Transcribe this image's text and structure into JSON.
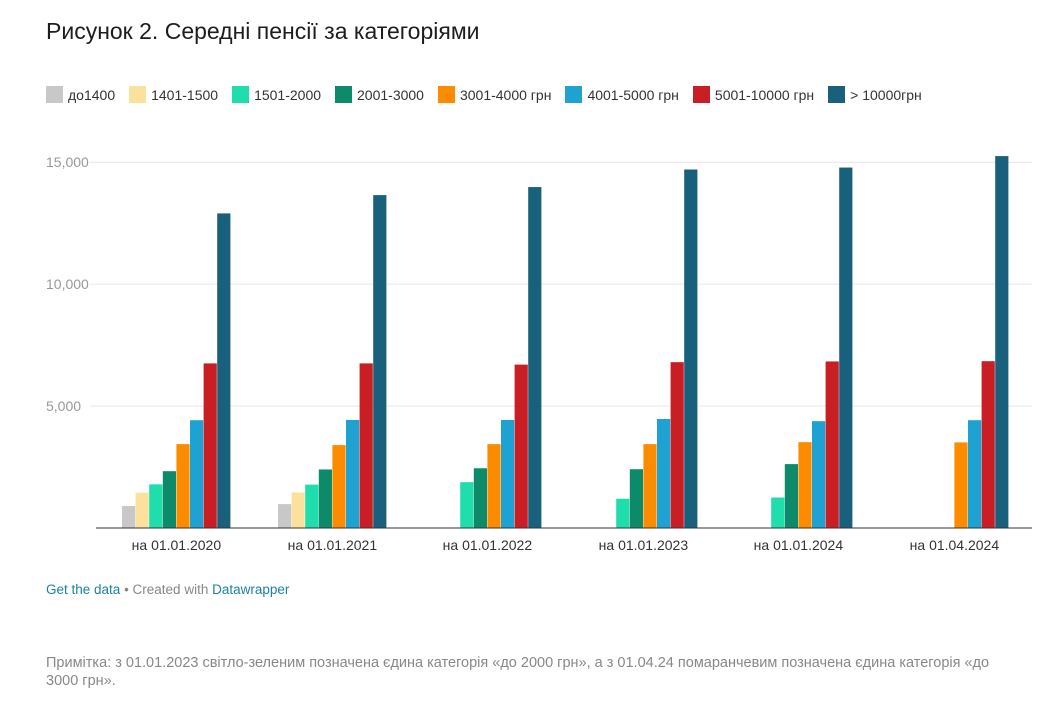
{
  "title": "Рисунок 2. Середні пенсії за категоріями",
  "footer": {
    "get_data": "Get the data",
    "separator": " • Created with ",
    "brand": "Datawrapper"
  },
  "note": "Примітка: з 01.01.2023 світло-зеленим позначена єдина категорія «до 2000 грн», а з 01.04.24 помаранчевим позначена єдина категорія «до 3000 грн».",
  "chart_data": {
    "type": "bar",
    "title": "Рисунок 2. Середні пенсії за категоріями",
    "xlabel": "",
    "ylabel": "",
    "ylim": [
      0,
      15500
    ],
    "yticks": [
      5000,
      10000,
      15000
    ],
    "ytick_labels": [
      "5,000",
      "10,000",
      "15,000"
    ],
    "grid": true,
    "legend_position": "top",
    "categories": [
      "на 01.01.2020",
      "на 01.01.2021",
      "на 01.01.2022",
      "на 01.01.2023",
      "на 01.01.2024",
      "на 01.04.2024"
    ],
    "series": [
      {
        "name": "до1400",
        "color": "#c8c8c8",
        "values": [
          900,
          980,
          null,
          null,
          null,
          null
        ]
      },
      {
        "name": "1401-1500",
        "color": "#fbe29c",
        "values": [
          1450,
          1460,
          null,
          null,
          null,
          null
        ]
      },
      {
        "name": "1501-2000",
        "color": "#20deab",
        "values": [
          1790,
          1780,
          1880,
          1200,
          1250,
          null
        ]
      },
      {
        "name": "2001-3000",
        "color": "#0d8a6a",
        "values": [
          2330,
          2400,
          2450,
          2410,
          2620,
          null
        ]
      },
      {
        "name": "3001-4000 грн",
        "color": "#fb8c00",
        "values": [
          3440,
          3400,
          3440,
          3440,
          3520,
          3510
        ]
      },
      {
        "name": "4001-5000 грн",
        "color": "#1ea2d1",
        "values": [
          4420,
          4430,
          4430,
          4470,
          4380,
          4420
        ]
      },
      {
        "name": "5001-10000 грн",
        "color": "#c91f24",
        "values": [
          6750,
          6750,
          6700,
          6800,
          6830,
          6840
        ]
      },
      {
        "name": "> 10000грн",
        "color": "#18607b",
        "values": [
          12900,
          13650,
          13980,
          14700,
          14780,
          15250
        ]
      }
    ]
  }
}
